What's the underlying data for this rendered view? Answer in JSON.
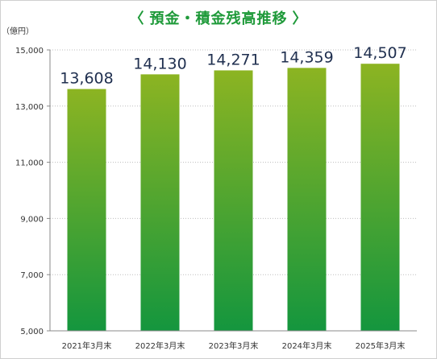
{
  "chart_data": {
    "type": "bar",
    "title": "預金・積金残高推移",
    "title_brackets": [
      "〈",
      "〉"
    ],
    "unit_label": "（億円）",
    "categories": [
      "2021年3月末",
      "2022年3月末",
      "2023年3月末",
      "2024年3月末",
      "2025年3月末"
    ],
    "series": [
      {
        "values": [
          13608,
          14130,
          14271,
          14359,
          14507
        ]
      }
    ],
    "data_labels": [
      "13,608",
      "14,130",
      "14,271",
      "14,359",
      "14,507"
    ],
    "ylim": [
      5000,
      15000
    ],
    "yticks": [
      5000,
      7000,
      9000,
      11000,
      13000,
      15000
    ],
    "ytick_labels": [
      "5,000",
      "7,000",
      "9,000",
      "11,000",
      "13,000",
      "15,000"
    ],
    "grid": true,
    "colors": {
      "bar_top": "#8cb422",
      "bar_bottom": "#14963e",
      "title": "#1f9a3a",
      "label": "#1f2f4f",
      "grid": "#bdbdbd",
      "axis": "#888888"
    }
  }
}
